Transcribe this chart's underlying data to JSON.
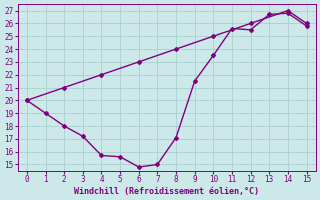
{
  "line1_x": [
    0,
    2,
    4,
    6,
    8,
    10,
    12,
    14,
    15
  ],
  "line1_y": [
    20.0,
    21.0,
    22.0,
    23.0,
    24.0,
    25.0,
    26.0,
    27.0,
    26.0
  ],
  "line2_x": [
    0,
    1,
    2,
    3,
    4,
    5,
    6,
    7,
    8,
    9,
    10,
    11,
    12,
    13,
    14,
    15
  ],
  "line2_y": [
    20.0,
    19.0,
    18.0,
    17.2,
    15.7,
    15.6,
    14.8,
    15.0,
    17.1,
    21.5,
    23.5,
    25.6,
    25.5,
    26.7,
    26.8,
    25.8
  ],
  "color": "#800080",
  "bg_color": "#cce8e8",
  "grid_color": "#aacece",
  "xlabel": "Windchill (Refroidissement éolien,°C)",
  "xlim": [
    -0.5,
    15.5
  ],
  "ylim": [
    14.5,
    27.5
  ],
  "xticks": [
    0,
    1,
    2,
    3,
    4,
    5,
    6,
    7,
    8,
    9,
    10,
    11,
    12,
    13,
    14,
    15
  ],
  "yticks": [
    15,
    16,
    17,
    18,
    19,
    20,
    21,
    22,
    23,
    24,
    25,
    26,
    27
  ],
  "marker": "D",
  "markersize": 2.0,
  "linewidth": 1.0
}
